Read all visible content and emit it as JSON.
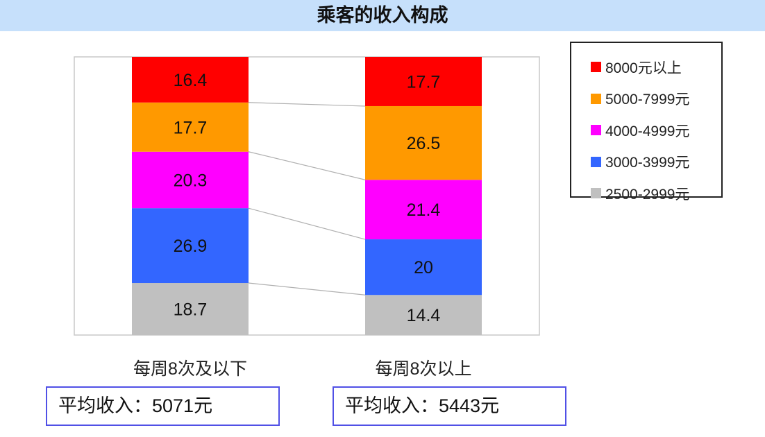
{
  "chart_data": {
    "type": "bar",
    "stacked": true,
    "title": "乘客的收入构成",
    "categories": [
      "每周8次及以下",
      "每周8次以上"
    ],
    "series": [
      {
        "name": "2500-2999元",
        "color": "#c0c0c0",
        "values": [
          18.7,
          14.4
        ]
      },
      {
        "name": "3000-3999元",
        "color": "#3366ff",
        "values": [
          26.9,
          20
        ]
      },
      {
        "name": "4000-4999元",
        "color": "#ff00ff",
        "values": [
          20.3,
          21.4
        ]
      },
      {
        "name": "5000-7999元",
        "color": "#ff9900",
        "values": [
          17.7,
          26.5
        ]
      },
      {
        "name": "8000元以上",
        "color": "#ff0000",
        "values": [
          16.4,
          17.7
        ]
      }
    ],
    "ylim": [
      0,
      100
    ],
    "grid": false,
    "legend_position": "right",
    "series_lines": true
  },
  "legend_order": [
    "8000元以上",
    "5000-7999元",
    "4000-4999元",
    "3000-3999元",
    "2500-2999元"
  ],
  "average_income": [
    "平均收入：5071元",
    "平均收入：5443元"
  ]
}
